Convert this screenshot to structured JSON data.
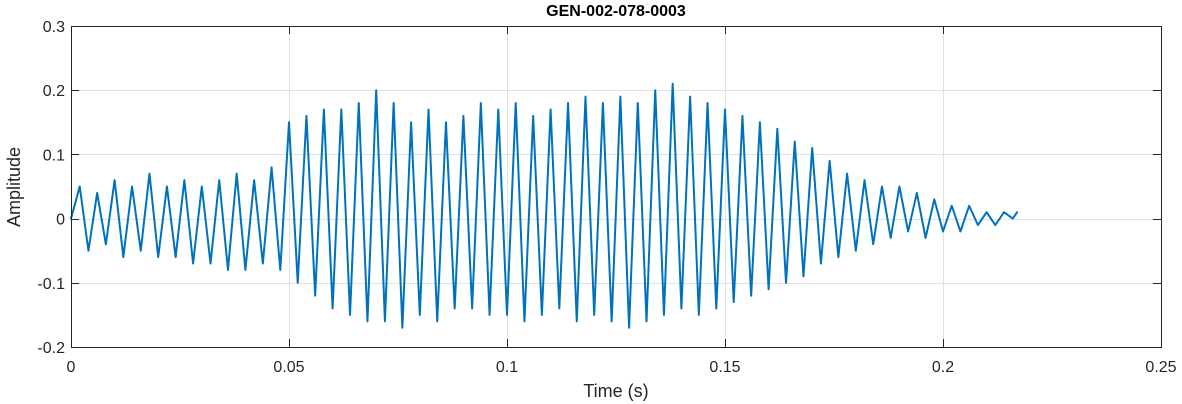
{
  "chart_data": {
    "type": "line",
    "title": "GEN-002-078-0003",
    "xlabel": "Time (s)",
    "ylabel": "Amplitude",
    "xlim": [
      0,
      0.25
    ],
    "ylim": [
      -0.2,
      0.3
    ],
    "xticks": [
      0,
      0.05,
      0.1,
      0.15,
      0.2,
      0.25
    ],
    "xtick_labels": [
      "0",
      "0.05",
      "0.1",
      "0.15",
      "0.2",
      "0.25"
    ],
    "yticks": [
      -0.2,
      -0.1,
      0,
      0.1,
      0.2,
      0.3
    ],
    "ytick_labels": [
      "-0.2",
      "-0.1",
      "0",
      "0.1",
      "0.2",
      "0.3"
    ],
    "grid": true,
    "series": [
      {
        "color": "#0072BD",
        "x": [
          0,
          0.002,
          0.004,
          0.006,
          0.008,
          0.01,
          0.012,
          0.014,
          0.016,
          0.018,
          0.02,
          0.022,
          0.024,
          0.026,
          0.028,
          0.03,
          0.032,
          0.034,
          0.036,
          0.038,
          0.04,
          0.042,
          0.044,
          0.046,
          0.048,
          0.05,
          0.052,
          0.054,
          0.056,
          0.058,
          0.06,
          0.062,
          0.064,
          0.066,
          0.068,
          0.07,
          0.072,
          0.074,
          0.076,
          0.078,
          0.08,
          0.082,
          0.084,
          0.086,
          0.088,
          0.09,
          0.092,
          0.094,
          0.096,
          0.098,
          0.1,
          0.102,
          0.104,
          0.106,
          0.108,
          0.11,
          0.112,
          0.114,
          0.116,
          0.118,
          0.12,
          0.122,
          0.124,
          0.126,
          0.128,
          0.13,
          0.132,
          0.134,
          0.136,
          0.138,
          0.14,
          0.142,
          0.144,
          0.146,
          0.148,
          0.15,
          0.152,
          0.154,
          0.156,
          0.158,
          0.16,
          0.162,
          0.164,
          0.166,
          0.168,
          0.17,
          0.172,
          0.174,
          0.176,
          0.178,
          0.18,
          0.182,
          0.184,
          0.186,
          0.188,
          0.19,
          0.192,
          0.194,
          0.196,
          0.198,
          0.2,
          0.202,
          0.204,
          0.206,
          0.208,
          0.21,
          0.212,
          0.214,
          0.216,
          0.217
        ],
        "y": [
          0.0,
          0.05,
          -0.05,
          0.04,
          -0.04,
          0.06,
          -0.06,
          0.05,
          -0.05,
          0.07,
          -0.06,
          0.05,
          -0.06,
          0.06,
          -0.07,
          0.05,
          -0.07,
          0.06,
          -0.08,
          0.07,
          -0.08,
          0.06,
          -0.07,
          0.08,
          -0.08,
          0.15,
          -0.1,
          0.16,
          -0.12,
          0.17,
          -0.14,
          0.17,
          -0.15,
          0.18,
          -0.16,
          0.2,
          -0.16,
          0.18,
          -0.17,
          0.15,
          -0.15,
          0.17,
          -0.16,
          0.15,
          -0.14,
          0.16,
          -0.14,
          0.18,
          -0.15,
          0.17,
          -0.15,
          0.18,
          -0.16,
          0.16,
          -0.15,
          0.17,
          -0.14,
          0.18,
          -0.16,
          0.19,
          -0.15,
          0.18,
          -0.16,
          0.19,
          -0.17,
          0.18,
          -0.16,
          0.2,
          -0.15,
          0.21,
          -0.14,
          0.19,
          -0.15,
          0.18,
          -0.14,
          0.17,
          -0.13,
          0.16,
          -0.12,
          0.15,
          -0.11,
          0.14,
          -0.1,
          0.12,
          -0.09,
          0.11,
          -0.07,
          0.09,
          -0.06,
          0.07,
          -0.05,
          0.06,
          -0.04,
          0.05,
          -0.03,
          0.05,
          -0.02,
          0.04,
          -0.03,
          0.03,
          -0.02,
          0.02,
          -0.02,
          0.02,
          -0.01,
          0.01,
          -0.01,
          0.01,
          0.0,
          0.01
        ]
      }
    ]
  }
}
